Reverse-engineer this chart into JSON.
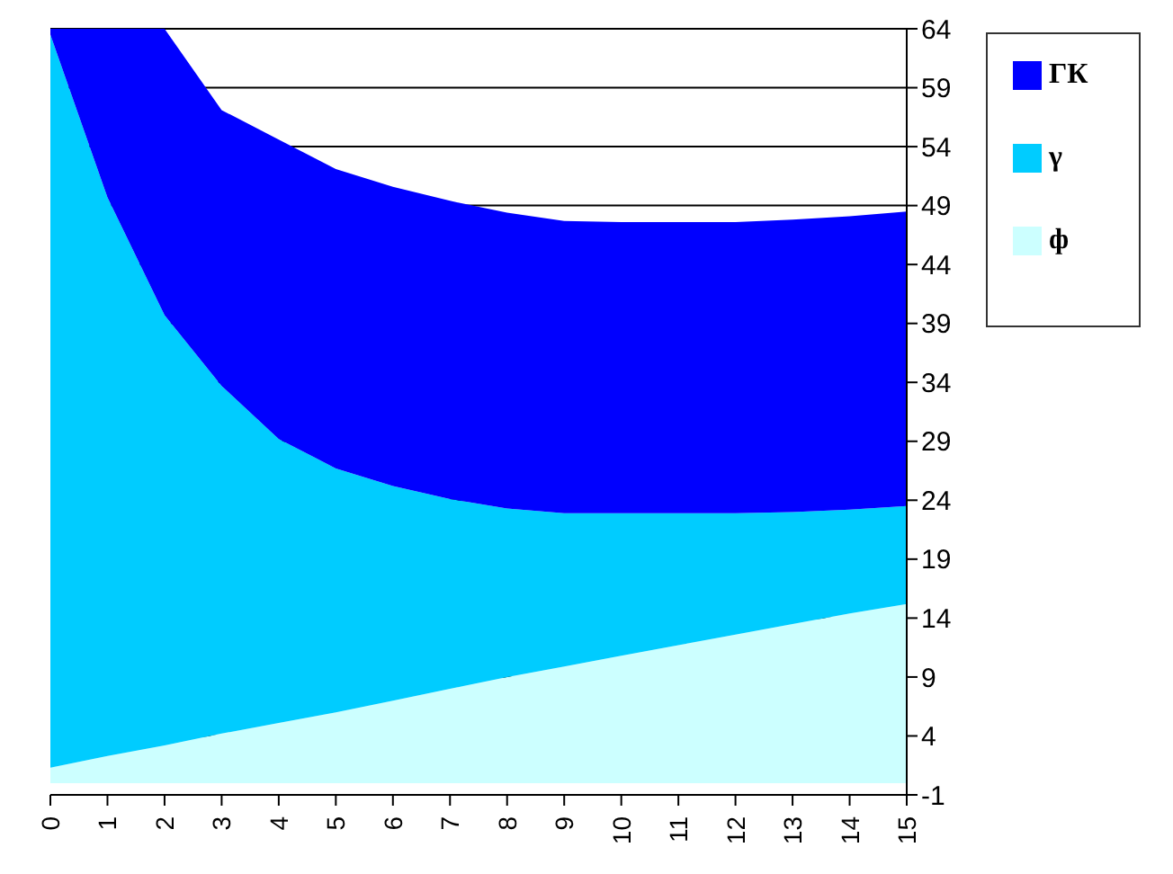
{
  "chart_data": {
    "type": "area",
    "stacked": true,
    "categories": [
      "0",
      "1",
      "2",
      "3",
      "4",
      "5",
      "6",
      "7",
      "8",
      "9",
      "10",
      "11",
      "12",
      "13",
      "14",
      "15"
    ],
    "series": [
      {
        "name": "ф",
        "color": "#ccffff",
        "values": [
          1.3,
          2.3,
          3.2,
          4.2,
          5.1,
          6.0,
          7.0,
          8.0,
          9.0,
          9.9,
          10.8,
          11.7,
          12.6,
          13.5,
          14.4,
          15.2
        ]
      },
      {
        "name": "γ",
        "color": "#00ccff",
        "values": [
          62.2,
          47.4,
          36.5,
          29.5,
          24.1,
          20.7,
          18.2,
          16.1,
          14.3,
          13.0,
          12.1,
          11.2,
          10.3,
          9.5,
          8.8,
          8.3
        ]
      },
      {
        "name": "ГК",
        "color": "#0000ff",
        "values": [
          0.5,
          14.3,
          24.3,
          23.4,
          25.4,
          25.4,
          25.4,
          25.3,
          25.1,
          24.8,
          24.7,
          24.7,
          24.7,
          24.8,
          24.9,
          25.0
        ]
      }
    ],
    "ylim": [
      -1,
      64
    ],
    "yticks": [
      -1,
      4,
      9,
      14,
      19,
      24,
      29,
      34,
      39,
      44,
      49,
      54,
      59,
      64
    ],
    "grid": "y",
    "legend": "top right"
  }
}
